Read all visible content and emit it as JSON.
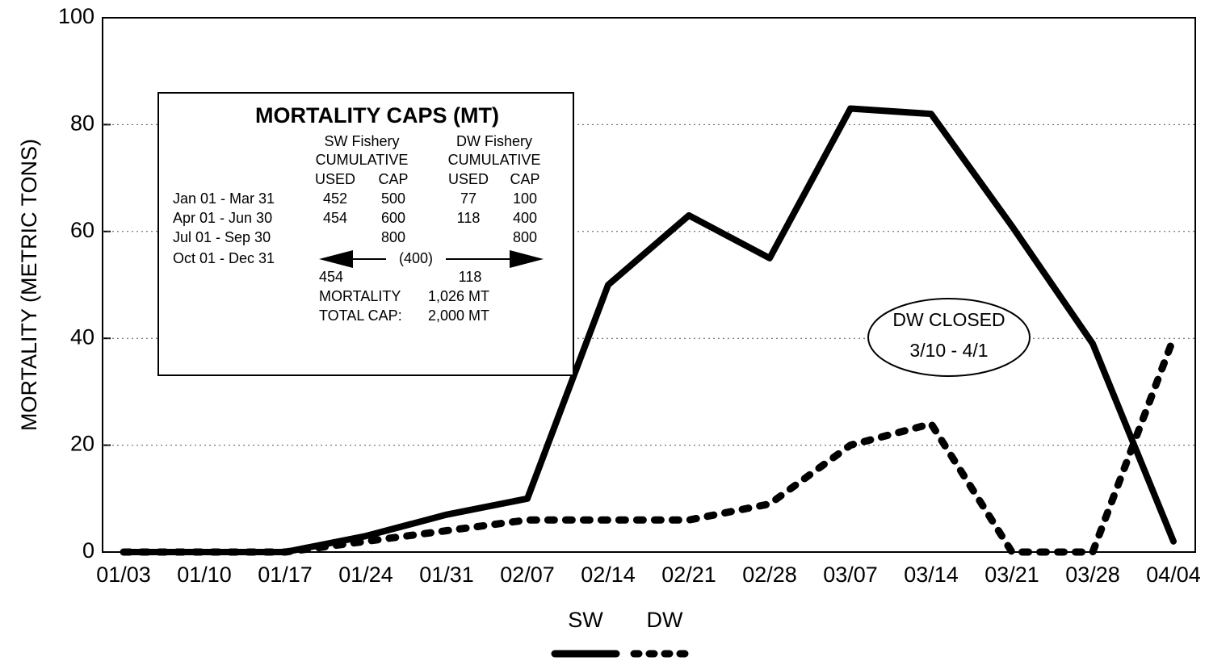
{
  "chart_data": {
    "type": "line",
    "ylabel": "MORTALITY (METRIC TONS)",
    "categories": [
      "01/03",
      "01/10",
      "01/17",
      "01/24",
      "01/31",
      "02/07",
      "02/14",
      "02/21",
      "02/28",
      "03/07",
      "03/14",
      "03/21",
      "03/28",
      "04/04"
    ],
    "series": [
      {
        "name": "SW",
        "color": "#000000",
        "style": "solid",
        "values": [
          0,
          0,
          0,
          3,
          7,
          10,
          50,
          63,
          55,
          83,
          82,
          61,
          39,
          2
        ]
      },
      {
        "name": "DW",
        "color": "#000000",
        "style": "dotted",
        "values": [
          0,
          0,
          0,
          2,
          4,
          6,
          6,
          6,
          9,
          20,
          24,
          0,
          0,
          40
        ]
      }
    ],
    "ylim": [
      0,
      100
    ],
    "yticks": [
      0,
      20,
      40,
      60,
      80,
      100
    ],
    "grid": true,
    "legend": "bottom",
    "annotation": [
      "DW CLOSED",
      "3/10 - 4/1"
    ],
    "inset": {
      "title": "MORTALITY CAPS (MT)",
      "fishery_headers": [
        "SW Fishery",
        "DW Fishery"
      ],
      "sub_headers": [
        "CUMULATIVE",
        "CUMULATIVE"
      ],
      "column_headers": [
        "USED",
        "CAP",
        "USED",
        "CAP"
      ],
      "rows": [
        [
          "Jan 01 - Mar 31",
          452,
          500,
          77,
          100
        ],
        [
          "Apr 01 - Jun 30",
          454,
          600,
          118,
          400
        ],
        [
          "Jul 01 - Sep 30",
          null,
          800,
          null,
          800
        ]
      ],
      "shared_row": [
        "Oct 01 - Dec 31",
        "(400)"
      ],
      "totals": [
        454,
        118
      ],
      "mortality": [
        "MORTALITY",
        "1,026 MT"
      ],
      "total_cap": [
        "TOTAL CAP:",
        "2,000 MT"
      ]
    }
  }
}
